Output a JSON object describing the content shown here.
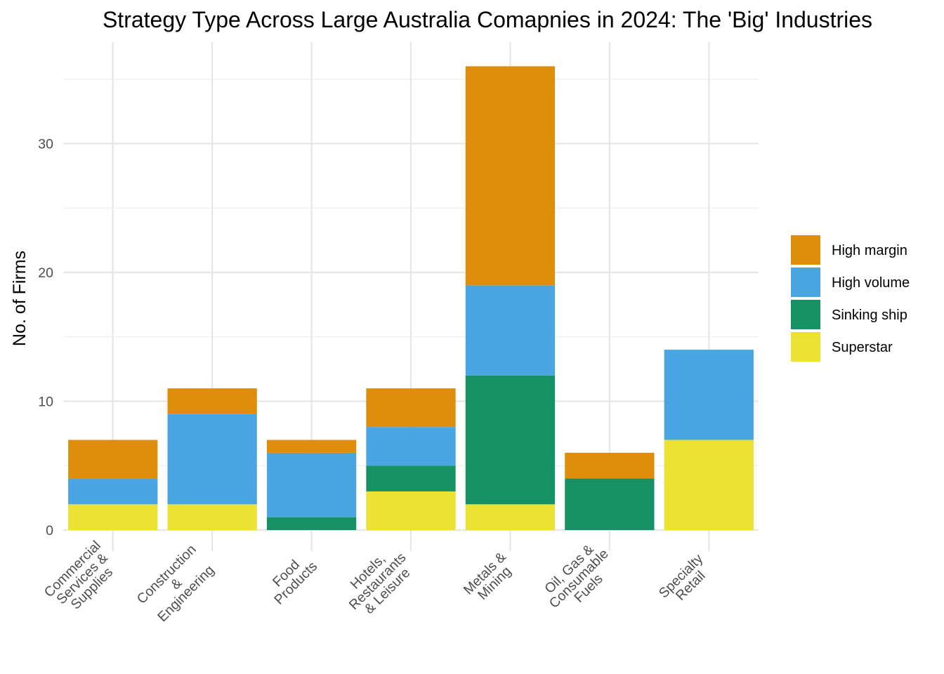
{
  "chart_data": {
    "type": "bar",
    "stacked": true,
    "title": "Strategy Type Across Large Australia Comapnies in 2024: The 'Big' Industries",
    "xlabel": "",
    "ylabel": "No. of Firms",
    "ylim": [
      0,
      36
    ],
    "y_ticks": [
      "0",
      "10",
      "20",
      "30"
    ],
    "grid": true,
    "legend_position": "right",
    "categories": [
      [
        "Commercial",
        "Services &",
        "Supplies"
      ],
      [
        "Construction",
        "&",
        "Engineering"
      ],
      [
        "Food",
        "Products"
      ],
      [
        "Hotels,",
        "Restaurants",
        "& Leisure"
      ],
      [
        "Metals &",
        "Mining"
      ],
      [
        "Oil, Gas &",
        "Consumable",
        "Fuels"
      ],
      [
        "Specialty",
        "Retail"
      ]
    ],
    "series": [
      {
        "name": "Superstar",
        "color": "#ebe234",
        "values": [
          2,
          2,
          0,
          3,
          2,
          0,
          7
        ]
      },
      {
        "name": "Sinking ship",
        "color": "#159163",
        "values": [
          0,
          0,
          1,
          2,
          10,
          4,
          0
        ]
      },
      {
        "name": "High volume",
        "color": "#4aa5e3",
        "values": [
          2,
          7,
          5,
          3,
          7,
          0,
          7
        ]
      },
      {
        "name": "High margin",
        "color": "#de8e0a",
        "values": [
          3,
          2,
          1,
          3,
          17,
          2,
          0
        ]
      }
    ],
    "legend_order": [
      "High margin",
      "High volume",
      "Sinking ship",
      "Superstar"
    ]
  }
}
